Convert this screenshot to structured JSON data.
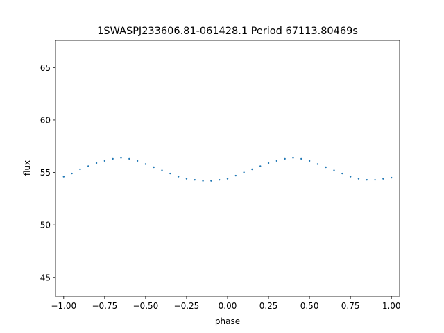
{
  "chart_data": {
    "type": "scatter",
    "title": "1SWASPJ233606.81-061428.1 Period 67113.80469s",
    "xlabel": "phase",
    "ylabel": "flux",
    "xlim": [
      -1.05,
      1.05
    ],
    "ylim": [
      43.2,
      67.6
    ],
    "x_ticks": [
      -1.0,
      -0.75,
      -0.5,
      -0.25,
      0.0,
      0.25,
      0.5,
      0.75,
      1.0
    ],
    "x_tick_labels": [
      "−1.00",
      "−0.75",
      "−0.50",
      "−0.25",
      "0.00",
      "0.25",
      "0.50",
      "0.75",
      "1.00"
    ],
    "y_ticks": [
      45,
      50,
      55,
      60,
      65
    ],
    "y_tick_labels": [
      "45",
      "50",
      "55",
      "60",
      "65"
    ],
    "grid": false,
    "legend": "none",
    "marker_color": "#1f77b4",
    "series": [
      {
        "x": [
          -1.0,
          -0.95,
          -0.9,
          -0.85,
          -0.8,
          -0.75,
          -0.7,
          -0.65,
          -0.6,
          -0.55,
          -0.5,
          -0.45,
          -0.4,
          -0.35,
          -0.3,
          -0.25,
          -0.2,
          -0.15,
          -0.1,
          -0.05,
          0.0,
          0.05,
          0.1,
          0.15,
          0.2,
          0.25,
          0.3,
          0.35,
          0.4,
          0.45,
          0.5,
          0.55,
          0.6,
          0.65,
          0.7,
          0.75,
          0.8,
          0.85,
          0.9,
          0.95,
          1.0
        ],
        "y": [
          54.6,
          54.9,
          55.3,
          55.6,
          55.9,
          56.1,
          56.3,
          56.4,
          56.3,
          56.1,
          55.8,
          55.5,
          55.2,
          54.9,
          54.6,
          54.4,
          54.3,
          54.2,
          54.2,
          54.3,
          54.4,
          54.7,
          55.0,
          55.3,
          55.6,
          55.9,
          56.1,
          56.3,
          56.4,
          56.3,
          56.1,
          55.8,
          55.5,
          55.2,
          54.9,
          54.6,
          54.4,
          54.3,
          54.3,
          54.4,
          54.5
        ]
      }
    ]
  }
}
